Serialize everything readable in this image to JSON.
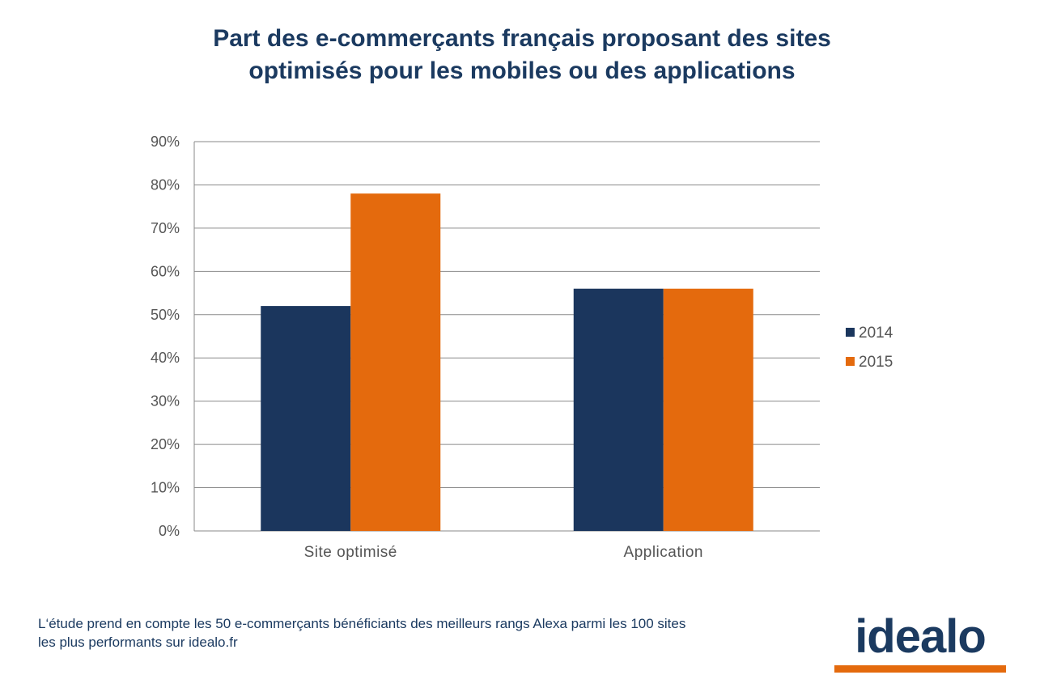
{
  "title": {
    "line1": "Part des e-commerçants français proposant des sites",
    "line2": "optimisés pour les mobiles ou des applications"
  },
  "chart_data": {
    "type": "bar",
    "categories": [
      "Site optimisé",
      "Application"
    ],
    "series": [
      {
        "name": "2014",
        "values": [
          52,
          56
        ],
        "color": "#1b365d"
      },
      {
        "name": "2015",
        "values": [
          78,
          56
        ],
        "color": "#e46a0d"
      }
    ],
    "ylim": [
      0,
      90
    ],
    "yticks": [
      0,
      10,
      20,
      30,
      40,
      50,
      60,
      70,
      80,
      90
    ],
    "ytick_suffix": "%",
    "grid": true,
    "legend": "right"
  },
  "footnote": {
    "line1": "L‘étude prend en compte les 50 e-commerçants bénéficiants des meilleurs rangs Alexa parmi les 100 sites",
    "line2": "les plus performants sur idealo.fr"
  },
  "logo": {
    "text": "idealo",
    "bar_color": "#e46a0d",
    "text_color": "#1b3a60"
  }
}
